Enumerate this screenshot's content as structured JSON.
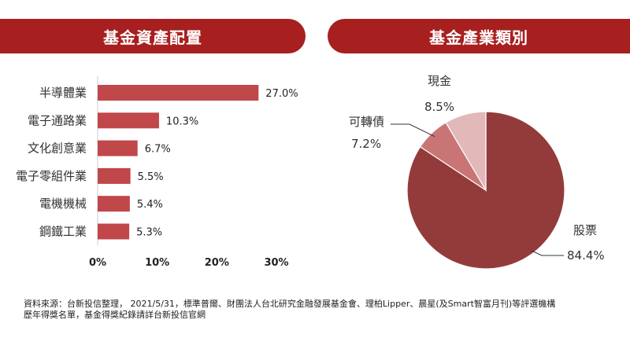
{
  "colors": {
    "banner": "#a81f1f",
    "bar": "#c0474a",
    "pie_stock": "#933b3b",
    "pie_convertible": "#c97575",
    "pie_cash": "#e2b8b8"
  },
  "left_panel": {
    "title": "基金資產配置"
  },
  "right_panel": {
    "title": "基金產業類別"
  },
  "footnote": {
    "line1": "資料來源：台新投信整理， 2021/5/31，標準普爾、財團法人台北研究金融發展基金會、理柏Lipper、晨星(及Smart智富月刊)等評選機構",
    "line2": "歷年得獎名單，基金得獎紀錄請詳台新投信官網"
  },
  "chart_data": [
    {
      "type": "bar",
      "orientation": "horizontal",
      "categories": [
        "半導體業",
        "電子通路業",
        "文化創意業",
        "電子零組件業",
        "電機機械",
        "鋼鐵工業"
      ],
      "values": [
        27.0,
        10.3,
        6.7,
        5.5,
        5.4,
        5.3
      ],
      "value_labels": [
        "27.0%",
        "10.3%",
        "6.7%",
        "5.5%",
        "5.4%",
        "5.3%"
      ],
      "xlim": [
        0,
        30
      ],
      "xticks": [
        "0%",
        "10%",
        "20%",
        "30%"
      ],
      "grid": false
    },
    {
      "type": "pie",
      "slices": [
        {
          "name": "股票",
          "value": 84.4,
          "label": "84.4%"
        },
        {
          "name": "可轉債",
          "value": 7.2,
          "label": "7.2%"
        },
        {
          "name": "現金",
          "value": 8.5,
          "label": "8.5%"
        }
      ]
    }
  ]
}
